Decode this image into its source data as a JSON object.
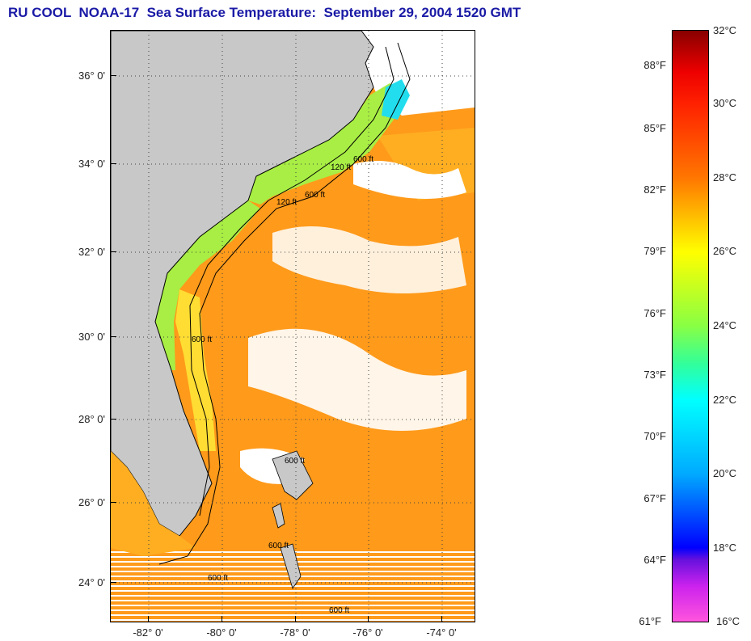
{
  "title": "RU COOL  NOAA-17  Sea Surface Temperature:  September 29, 2004 1520 GMT",
  "map": {
    "latitude_labels": [
      "36° 0'",
      "34° 0'",
      "32° 0'",
      "30° 0'",
      "28° 0'",
      "26° 0'",
      "24° 0'"
    ],
    "longitude_labels": [
      "-82° 0'",
      "-80° 0'",
      "-78° 0'",
      "-76° 0'",
      "-74° 0'"
    ],
    "contour_labels": [
      "120 ft",
      "600 ft",
      "120 ft",
      "600 ft",
      "600 ft",
      "600 ft",
      "600 ft",
      "600 ft",
      "600 ft"
    ],
    "colors": {
      "land": "#c8c8c8",
      "cloud": "#ffffff",
      "ocean_warm": "#ff9a1a",
      "ocean_orange": "#ffae22",
      "shelf_green": "#a8ee44",
      "shelf_cyan": "#22ddee",
      "nearshore_yellow": "#ffdd33"
    }
  },
  "colorbar": {
    "fahrenheit_labels": [
      "88°F",
      "85°F",
      "82°F",
      "79°F",
      "76°F",
      "73°F",
      "70°F",
      "67°F",
      "64°F",
      "61°F"
    ],
    "celsius_labels": [
      "32°C",
      "30°C",
      "28°C",
      "26°C",
      "24°C",
      "22°C",
      "20°C",
      "18°C",
      "16°C"
    ],
    "range_celsius": [
      16,
      32
    ]
  }
}
